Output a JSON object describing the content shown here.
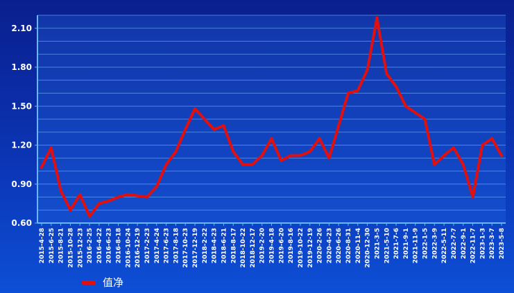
{
  "chart_data": {
    "type": "line",
    "title": "",
    "xlabel": "",
    "ylabel": "",
    "ylim": [
      0.6,
      2.2
    ],
    "yticks": [
      "0.60",
      "0.90",
      "1.20",
      "1.50",
      "1.80",
      "2.10"
    ],
    "grid": true,
    "legend_position": "bottom-left",
    "x_tick_labels": [
      "2015-4-28",
      "2015-6-25",
      "2015-8-21",
      "2015-10-28",
      "2015-12-23",
      "2016-2-25",
      "2016-4-22",
      "2016-6-23",
      "2016-8-18",
      "2016-10-24",
      "2016-12-19",
      "2017-2-23",
      "2017-4-24",
      "2017-6-23",
      "2017-8-18",
      "2017-10-23",
      "2017-12-19",
      "2018-2-22",
      "2018-4-23",
      "2018-6-21",
      "2018-8-17",
      "2018-10-22",
      "2018-12-17",
      "2019-2-20",
      "2019-4-18",
      "2019-6-20",
      "2019-8-16",
      "2019-10-22",
      "2019-12-19",
      "2020-2-26",
      "2020-4-23",
      "2020-6-26",
      "2020-8-31",
      "2020-11-4",
      "2020-12-30",
      "2021-3-5",
      "2021-5-10",
      "2021-7-6",
      "2021-9-1",
      "2021-11-9",
      "2022-1-5",
      "2022-3-9",
      "2022-5-11",
      "2022-7-7",
      "2022-9-1",
      "2022-11-7",
      "2023-1-3",
      "2023-3-7",
      "2023-5-8"
    ],
    "series": [
      {
        "name": "值净",
        "color": "#e01010",
        "x": [
          "2015-4-28",
          "2015-6-25",
          "2015-8-21",
          "2015-10-28",
          "2015-12-23",
          "2016-2-25",
          "2016-4-22",
          "2016-6-23",
          "2016-8-18",
          "2016-10-24",
          "2016-12-19",
          "2017-2-23",
          "2017-4-24",
          "2017-6-23",
          "2017-8-18",
          "2017-10-23",
          "2017-12-19",
          "2018-2-22",
          "2018-4-23",
          "2018-6-21",
          "2018-8-17",
          "2018-10-22",
          "2018-12-17",
          "2019-2-20",
          "2019-4-18",
          "2019-6-20",
          "2019-8-16",
          "2019-10-22",
          "2019-12-19",
          "2020-2-26",
          "2020-4-23",
          "2020-6-26",
          "2020-8-31",
          "2020-11-4",
          "2020-12-30",
          "2021-3-5",
          "2021-5-10",
          "2021-7-6",
          "2021-9-1",
          "2021-11-9",
          "2022-1-5",
          "2022-3-9",
          "2022-5-11",
          "2022-7-7",
          "2022-9-1",
          "2022-11-7",
          "2023-1-3",
          "2023-3-7",
          "2023-5-8"
        ],
        "values": [
          1.03,
          1.18,
          0.85,
          0.7,
          0.82,
          0.65,
          0.75,
          0.77,
          0.8,
          0.82,
          0.81,
          0.8,
          0.88,
          1.05,
          1.15,
          1.32,
          1.48,
          1.4,
          1.32,
          1.35,
          1.15,
          1.05,
          1.05,
          1.12,
          1.25,
          1.08,
          1.12,
          1.12,
          1.15,
          1.25,
          1.1,
          1.35,
          1.6,
          1.62,
          1.78,
          2.18,
          1.75,
          1.65,
          1.5,
          1.45,
          1.4,
          1.05,
          1.12,
          1.18,
          1.05,
          0.8,
          1.2,
          1.25,
          1.12
        ]
      }
    ]
  },
  "legend": {
    "label": "值净"
  }
}
